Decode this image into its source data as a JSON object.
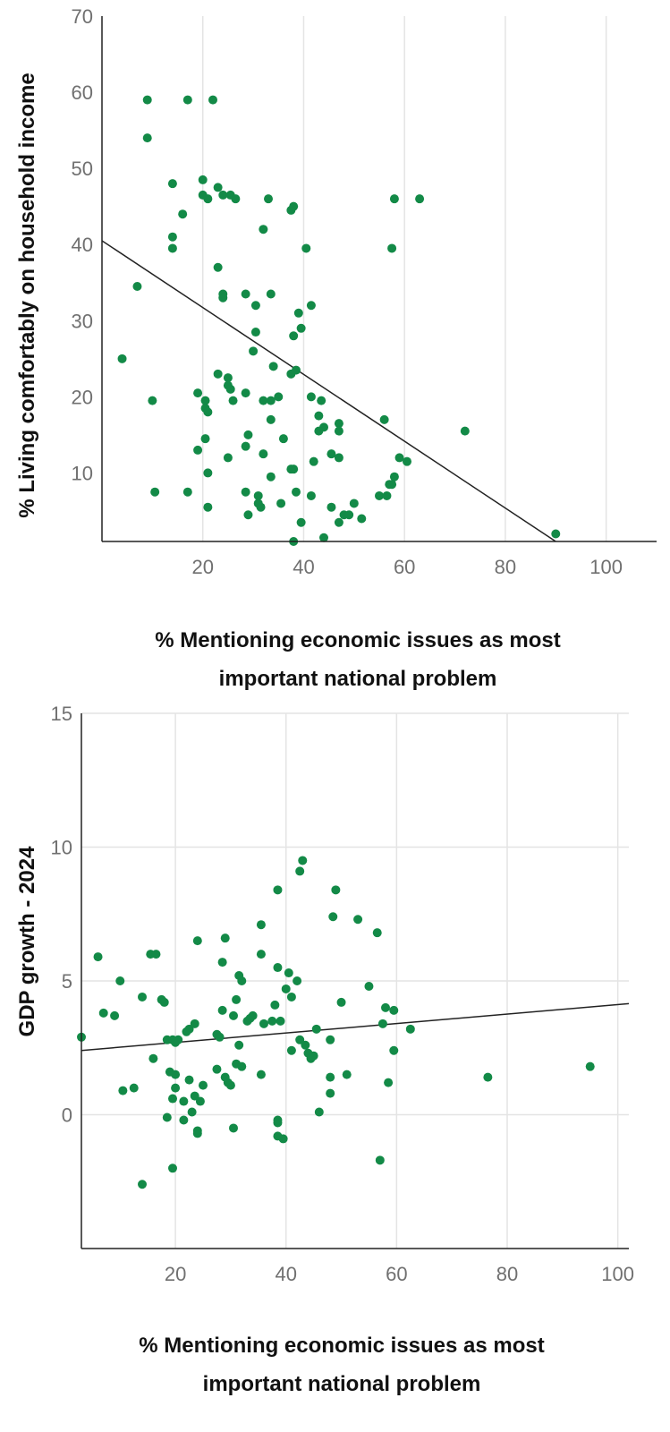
{
  "colors": {
    "point": "#138a47",
    "trend": "#222222",
    "grid": "#e4e4e4"
  },
  "chart_data": [
    {
      "type": "scatter",
      "title": "",
      "xlabel_lines": [
        "% Mentioning economic issues as most",
        "important national problem"
      ],
      "ylabel": "% Living comfortably on  household income",
      "xlim": [
        0,
        110
      ],
      "ylim": [
        1,
        70
      ],
      "xticks": [
        20,
        40,
        60,
        80,
        100
      ],
      "yticks": [
        10,
        20,
        30,
        40,
        50,
        60,
        70
      ],
      "grid": "vertical",
      "trendline": [
        [
          0,
          40.5
        ],
        [
          90,
          1
        ]
      ],
      "points": [
        [
          9,
          59
        ],
        [
          17,
          59
        ],
        [
          22,
          59
        ],
        [
          9,
          54
        ],
        [
          14,
          48
        ],
        [
          20,
          48.5
        ],
        [
          21,
          46
        ],
        [
          20,
          46.5
        ],
        [
          24,
          46.5
        ],
        [
          23,
          47.5
        ],
        [
          25.5,
          46.5
        ],
        [
          26.5,
          46
        ],
        [
          33,
          46
        ],
        [
          58,
          46
        ],
        [
          63,
          46
        ],
        [
          16,
          44
        ],
        [
          37.5,
          44.5
        ],
        [
          38,
          45
        ],
        [
          14,
          41
        ],
        [
          14,
          39.5
        ],
        [
          32,
          42
        ],
        [
          40.5,
          39.5
        ],
        [
          57.5,
          39.5
        ],
        [
          23,
          37
        ],
        [
          7,
          34.5
        ],
        [
          24,
          33.5
        ],
        [
          24,
          33
        ],
        [
          28.5,
          33.5
        ],
        [
          33.5,
          33.5
        ],
        [
          30.5,
          32
        ],
        [
          41.5,
          32
        ],
        [
          39,
          31
        ],
        [
          30.5,
          28.5
        ],
        [
          38,
          28
        ],
        [
          39.5,
          29
        ],
        [
          4,
          25
        ],
        [
          30,
          26
        ],
        [
          34,
          24
        ],
        [
          37.5,
          23
        ],
        [
          38.5,
          23.5
        ],
        [
          23,
          23
        ],
        [
          25,
          22.5
        ],
        [
          25,
          21.5
        ],
        [
          25.5,
          21
        ],
        [
          19,
          20.5
        ],
        [
          28.5,
          20.5
        ],
        [
          41.5,
          20
        ],
        [
          43.5,
          19.5
        ],
        [
          10,
          19.5
        ],
        [
          20.5,
          19.5
        ],
        [
          20.5,
          18.5
        ],
        [
          21,
          18
        ],
        [
          26,
          19.5
        ],
        [
          32,
          19.5
        ],
        [
          33.5,
          19.5
        ],
        [
          35,
          20
        ],
        [
          36,
          14.5
        ],
        [
          43,
          17.5
        ],
        [
          44,
          16
        ],
        [
          43,
          15.5
        ],
        [
          47,
          16.5
        ],
        [
          47,
          15.5
        ],
        [
          56,
          17
        ],
        [
          72,
          15.5
        ],
        [
          33.5,
          17
        ],
        [
          25,
          12
        ],
        [
          19,
          13
        ],
        [
          20.5,
          14.5
        ],
        [
          28.5,
          13.5
        ],
        [
          29,
          15
        ],
        [
          32,
          12.5
        ],
        [
          42,
          11.5
        ],
        [
          45.5,
          12.5
        ],
        [
          47,
          12
        ],
        [
          59,
          12
        ],
        [
          60.5,
          11.5
        ],
        [
          21,
          10
        ],
        [
          38,
          10.5
        ],
        [
          37.5,
          10.5
        ],
        [
          33.5,
          9.5
        ],
        [
          58,
          9.5
        ],
        [
          57,
          8.5
        ],
        [
          57.5,
          8.5
        ],
        [
          10.5,
          7.5
        ],
        [
          17,
          7.5
        ],
        [
          28.5,
          7.5
        ],
        [
          31,
          7
        ],
        [
          38.5,
          7.5
        ],
        [
          41.5,
          7
        ],
        [
          35.5,
          6
        ],
        [
          31,
          6
        ],
        [
          31.5,
          5.5
        ],
        [
          21,
          5.5
        ],
        [
          45.5,
          5.5
        ],
        [
          50,
          6
        ],
        [
          55,
          7
        ],
        [
          56.5,
          7
        ],
        [
          29,
          4.5
        ],
        [
          48,
          4.5
        ],
        [
          49,
          4.5
        ],
        [
          51.5,
          4
        ],
        [
          47,
          3.5
        ],
        [
          39.5,
          3.5
        ],
        [
          38,
          1
        ],
        [
          44,
          1.5
        ],
        [
          90,
          2
        ]
      ]
    },
    {
      "type": "scatter",
      "title": "",
      "xlabel_lines": [
        "% Mentioning economic issues as most",
        "important national problem"
      ],
      "ylabel": "GDP growth - 2024",
      "xlim": [
        3,
        102
      ],
      "ylim": [
        -5,
        15
      ],
      "xticks": [
        20,
        40,
        60,
        80,
        100
      ],
      "yticks": [
        0,
        5,
        10,
        15
      ],
      "grid": "both",
      "trendline": [
        [
          3,
          2.4
        ],
        [
          102,
          4.15
        ]
      ],
      "points": [
        [
          3,
          2.9
        ],
        [
          6,
          5.9
        ],
        [
          7,
          3.8
        ],
        [
          9,
          3.7
        ],
        [
          10,
          5
        ],
        [
          10.5,
          0.9
        ],
        [
          12.5,
          1
        ],
        [
          14,
          4.4
        ],
        [
          14,
          -2.6
        ],
        [
          15.5,
          6
        ],
        [
          16.5,
          6
        ],
        [
          17.5,
          4.3
        ],
        [
          18,
          4.2
        ],
        [
          16,
          2.1
        ],
        [
          19,
          1.6
        ],
        [
          18.5,
          2.8
        ],
        [
          19.5,
          2.8
        ],
        [
          20,
          2.7
        ],
        [
          20.5,
          2.8
        ],
        [
          22,
          3.1
        ],
        [
          22.5,
          3.2
        ],
        [
          23.5,
          3.4
        ],
        [
          24,
          6.5
        ],
        [
          20,
          1.5
        ],
        [
          19.5,
          0.6
        ],
        [
          20,
          1
        ],
        [
          21.5,
          0.5
        ],
        [
          22.5,
          1.3
        ],
        [
          23,
          0.1
        ],
        [
          24,
          -0.6
        ],
        [
          24,
          -0.7
        ],
        [
          23.5,
          0.7
        ],
        [
          24.5,
          0.5
        ],
        [
          25,
          1.1
        ],
        [
          21.5,
          -0.2
        ],
        [
          18.5,
          -0.1
        ],
        [
          19.5,
          -2
        ],
        [
          27.5,
          3
        ],
        [
          28,
          2.9
        ],
        [
          28.5,
          3.9
        ],
        [
          28.5,
          5.7
        ],
        [
          29,
          6.6
        ],
        [
          29.5,
          1.2
        ],
        [
          30,
          1.1
        ],
        [
          30.5,
          3.7
        ],
        [
          31,
          4.3
        ],
        [
          31.5,
          5.2
        ],
        [
          32,
          5
        ],
        [
          33,
          3.5
        ],
        [
          33.5,
          3.6
        ],
        [
          34,
          3.7
        ],
        [
          35.5,
          6
        ],
        [
          35.5,
          7.1
        ],
        [
          36,
          3.4
        ],
        [
          37.5,
          3.5
        ],
        [
          38,
          4.1
        ],
        [
          38.5,
          5.5
        ],
        [
          38.5,
          8.4
        ],
        [
          39,
          3.5
        ],
        [
          40,
          4.7
        ],
        [
          40.5,
          5.3
        ],
        [
          41,
          4.4
        ],
        [
          41,
          2.4
        ],
        [
          42,
          5
        ],
        [
          42.5,
          2.8
        ],
        [
          42.5,
          9.1
        ],
        [
          43,
          9.5
        ],
        [
          43.5,
          2.6
        ],
        [
          44,
          2.3
        ],
        [
          44.5,
          2.1
        ],
        [
          45,
          2.2
        ],
        [
          45.5,
          3.2
        ],
        [
          46,
          0.1
        ],
        [
          48,
          2.8
        ],
        [
          48.5,
          7.4
        ],
        [
          49,
          8.4
        ],
        [
          50,
          4.2
        ],
        [
          48,
          1.4
        ],
        [
          48,
          0.8
        ],
        [
          51,
          1.5
        ],
        [
          53,
          7.3
        ],
        [
          55,
          4.8
        ],
        [
          56.5,
          6.8
        ],
        [
          57,
          -1.7
        ],
        [
          57.5,
          3.4
        ],
        [
          58,
          4
        ],
        [
          58.5,
          1.2
        ],
        [
          59.5,
          3.9
        ],
        [
          59.5,
          2.4
        ],
        [
          62.5,
          3.2
        ],
        [
          27.5,
          1.7
        ],
        [
          29,
          1.4
        ],
        [
          30.5,
          -0.5
        ],
        [
          31,
          1.9
        ],
        [
          31.5,
          2.6
        ],
        [
          32,
          1.8
        ],
        [
          35.5,
          1.5
        ],
        [
          38.5,
          -0.3
        ],
        [
          38.5,
          -0.8
        ],
        [
          39.5,
          -0.9
        ],
        [
          38.5,
          -0.2
        ],
        [
          76.5,
          1.4
        ],
        [
          95,
          1.8
        ]
      ]
    }
  ]
}
